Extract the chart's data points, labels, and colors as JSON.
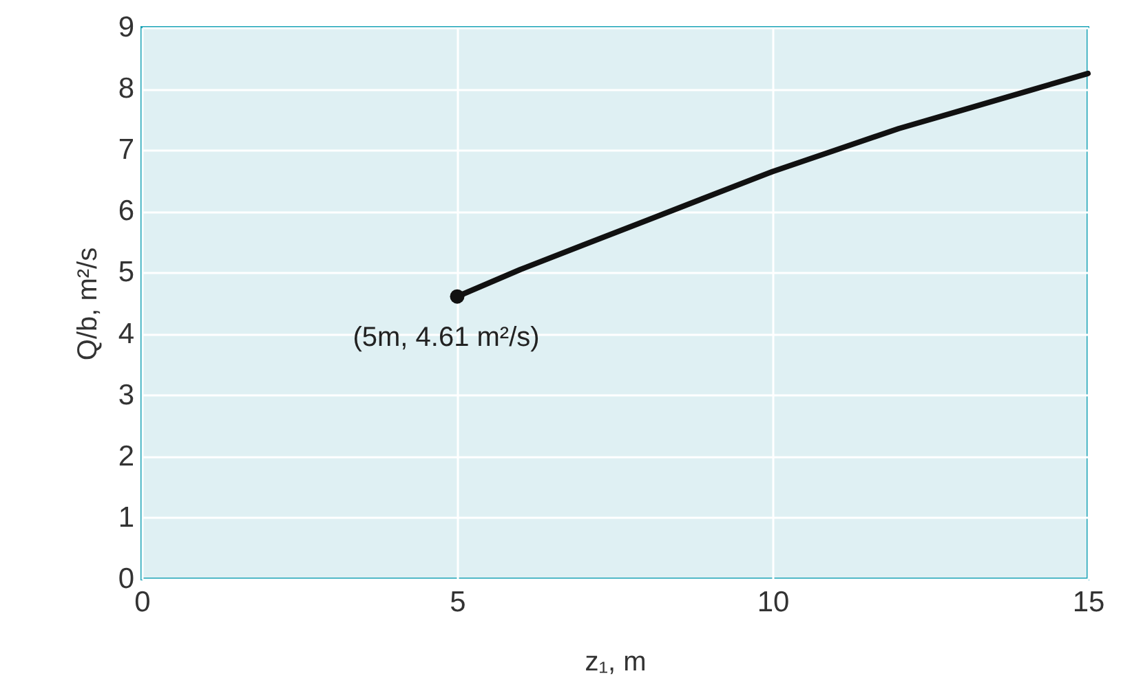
{
  "chart_data": {
    "type": "line",
    "xlabel": "z₁, m",
    "ylabel": "Q/b, m²/s",
    "xlim": [
      0,
      15
    ],
    "ylim": [
      0,
      9
    ],
    "xticks": [
      0,
      5,
      10,
      15
    ],
    "yticks": [
      0,
      1,
      2,
      3,
      4,
      5,
      6,
      7,
      8,
      9
    ],
    "grid": true,
    "annotations": [
      {
        "text": "(5m, 4.61 m²/s)",
        "x": 5,
        "y": 4.61
      }
    ],
    "series": [
      {
        "color": "#111111",
        "x": [
          5,
          6,
          7,
          8,
          9,
          10,
          11,
          12,
          13,
          14,
          15
        ],
        "values": [
          4.61,
          5.05,
          5.45,
          5.85,
          6.25,
          6.65,
          7.0,
          7.35,
          7.65,
          7.95,
          8.25
        ]
      },
      {
        "type": "scatter",
        "color": "#111111",
        "x": [
          5
        ],
        "values": [
          4.61
        ]
      }
    ]
  }
}
